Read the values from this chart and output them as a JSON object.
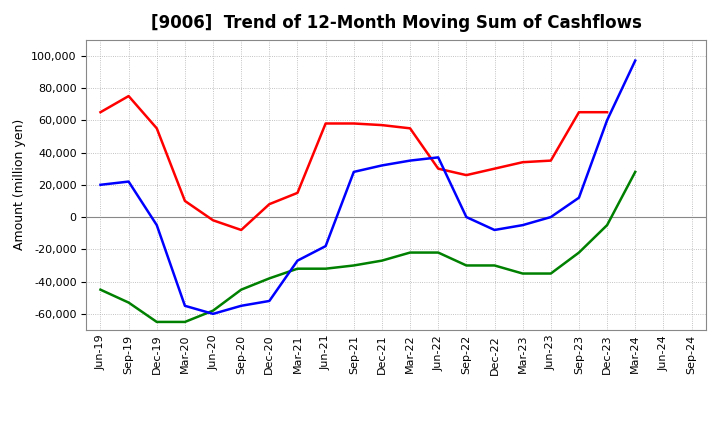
{
  "title": "[9006]  Trend of 12-Month Moving Sum of Cashflows",
  "ylabel": "Amount (million yen)",
  "ylim": [
    -70000,
    110000
  ],
  "yticks": [
    -60000,
    -40000,
    -20000,
    0,
    20000,
    40000,
    60000,
    80000,
    100000
  ],
  "x_labels": [
    "Jun-19",
    "Sep-19",
    "Dec-19",
    "Mar-20",
    "Jun-20",
    "Sep-20",
    "Dec-20",
    "Mar-21",
    "Jun-21",
    "Sep-21",
    "Dec-21",
    "Mar-22",
    "Jun-22",
    "Sep-22",
    "Dec-22",
    "Mar-23",
    "Jun-23",
    "Sep-23",
    "Dec-23",
    "Mar-24",
    "Jun-24",
    "Sep-24"
  ],
  "operating": [
    65000,
    75000,
    55000,
    10000,
    -2000,
    -8000,
    8000,
    15000,
    58000,
    58000,
    57000,
    55000,
    30000,
    26000,
    30000,
    34000,
    35000,
    65000,
    65000,
    null,
    null,
    null
  ],
  "investing": [
    -45000,
    -53000,
    -65000,
    -65000,
    -58000,
    -45000,
    -38000,
    -32000,
    -32000,
    -30000,
    -27000,
    -22000,
    -22000,
    -30000,
    -30000,
    -35000,
    -35000,
    -22000,
    -5000,
    28000,
    null,
    null
  ],
  "free": [
    20000,
    22000,
    -5000,
    -55000,
    -60000,
    -55000,
    -52000,
    -27000,
    -18000,
    28000,
    32000,
    35000,
    37000,
    0,
    -8000,
    -5000,
    0,
    12000,
    60000,
    97000,
    null,
    null
  ],
  "colors": {
    "operating": "#ff0000",
    "investing": "#008000",
    "free": "#0000ff"
  },
  "background_color": "#ffffff",
  "grid_color": "#b0b0b0",
  "title_fontsize": 12,
  "axis_fontsize": 8,
  "ylabel_fontsize": 9
}
